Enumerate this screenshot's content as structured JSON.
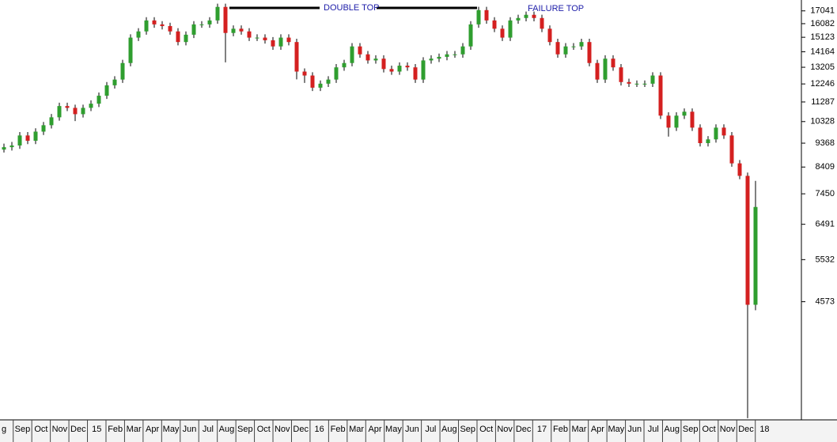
{
  "chart_data": {
    "type": "candlestick",
    "annotations": [
      "DOUBLE TOP",
      "FAILURE TOP"
    ],
    "x_labels": [
      "g",
      "Sep",
      "Oct",
      "Nov",
      "Dec",
      "15",
      "Feb",
      "Mar",
      "Apr",
      "May",
      "Jun",
      "Jul",
      "Aug",
      "Sep",
      "Oct",
      "Nov",
      "Dec",
      "16",
      "Feb",
      "Mar",
      "Apr",
      "May",
      "Jun",
      "Jul",
      "Aug",
      "Sep",
      "Oct",
      "Nov",
      "Dec",
      "17",
      "Feb",
      "Mar",
      "Apr",
      "May",
      "Jun",
      "Jul",
      "Aug",
      "Sep",
      "Oct",
      "Nov",
      "Dec",
      "18"
    ],
    "open": [
      9100,
      9200,
      9270,
      9700,
      9470,
      9870,
      10160,
      10530,
      11080,
      10990,
      10680,
      10990,
      11200,
      11610,
      12170,
      12490,
      13460,
      15100,
      15530,
      16320,
      16030,
      15910,
      15530,
      14800,
      15300,
      16030,
      16030,
      16320,
      17350,
      15420,
      15720,
      15530,
      15100,
      15100,
      14920,
      14510,
      15100,
      14800,
      12950,
      12720,
      12040,
      12260,
      12490,
      13200,
      13460,
      14510,
      14000,
      13620,
      13730,
      13100,
      12950,
      13300,
      13200,
      12490,
      13620,
      13730,
      13840,
      14000,
      14000,
      14510,
      16030,
      17100,
      16320,
      15720,
      15100,
      16320,
      16500,
      16740,
      16500,
      15720,
      14800,
      14000,
      14510,
      14510,
      14800,
      13460,
      12490,
      13730,
      13200,
      12350,
      12260,
      12260,
      12260,
      12720,
      10610,
      10050,
      10610,
      10800,
      10050,
      9370,
      9530,
      10050,
      9700,
      8550,
      8080,
      4510
    ],
    "high": [
      9350,
      9420,
      9850,
      9850,
      10020,
      10310,
      10690,
      11250,
      11250,
      11150,
      11150,
      11370,
      11780,
      12350,
      12680,
      13660,
      15330,
      15760,
      16560,
      16560,
      16270,
      16150,
      15760,
      15530,
      16270,
      16270,
      16560,
      17610,
      17610,
      15960,
      15960,
      15760,
      15330,
      15330,
      15140,
      15330,
      15330,
      15020,
      13140,
      12910,
      12440,
      12680,
      13400,
      13660,
      14730,
      14730,
      14210,
      13940,
      13940,
      13300,
      13500,
      13500,
      13400,
      13820,
      13940,
      14050,
      14210,
      14210,
      14730,
      16270,
      17360,
      17360,
      16560,
      15960,
      16560,
      16750,
      16990,
      16990,
      16750,
      15960,
      15020,
      14730,
      14730,
      15020,
      15020,
      13660,
      13940,
      13940,
      13400,
      12540,
      12440,
      12440,
      12910,
      12910,
      10770,
      10770,
      10960,
      10960,
      10200,
      9670,
      10200,
      10200,
      9850,
      8680,
      8200,
      7900
    ],
    "low": [
      8980,
      9060,
      9130,
      9330,
      9330,
      9720,
      10010,
      10370,
      10830,
      10350,
      10520,
      10830,
      11030,
      11440,
      11990,
      12300,
      13260,
      14870,
      15300,
      15790,
      15670,
      15300,
      14580,
      14580,
      15070,
      15790,
      15790,
      16080,
      13500,
      15190,
      15300,
      14870,
      14870,
      14700,
      14290,
      14290,
      14580,
      12500,
      12300,
      11860,
      11860,
      12080,
      12300,
      13000,
      13260,
      13790,
      13420,
      13420,
      12900,
      12760,
      12760,
      13000,
      12300,
      12300,
      13420,
      13520,
      13630,
      13790,
      13790,
      14290,
      15790,
      16080,
      15480,
      14870,
      14870,
      16080,
      16250,
      16250,
      15480,
      14580,
      13790,
      13790,
      14290,
      14290,
      13260,
      12300,
      12300,
      13000,
      12160,
      12080,
      12080,
      12080,
      12080,
      10450,
      9650,
      9900,
      10450,
      9900,
      9230,
      9230,
      9390,
      9550,
      8420,
      7960,
      2700,
      4400
    ],
    "close": [
      9200,
      9270,
      9700,
      9470,
      9870,
      10160,
      10530,
      11080,
      10990,
      10680,
      10990,
      11200,
      11610,
      12170,
      12490,
      13460,
      15100,
      15530,
      16320,
      16030,
      15910,
      15530,
      14800,
      15300,
      16030,
      16030,
      16320,
      17350,
      15420,
      15720,
      15530,
      15100,
      15100,
      14920,
      14510,
      15100,
      14800,
      12950,
      12720,
      12040,
      12260,
      12490,
      13200,
      13460,
      14510,
      14000,
      13620,
      13730,
      13100,
      12950,
      13300,
      13200,
      12490,
      13620,
      13730,
      13840,
      14000,
      14000,
      14510,
      16030,
      17100,
      16320,
      15720,
      15100,
      16320,
      16500,
      16740,
      16500,
      15720,
      14800,
      14000,
      14510,
      14510,
      14800,
      13460,
      12490,
      13730,
      13200,
      12350,
      12260,
      12260,
      12260,
      12720,
      10610,
      10050,
      10610,
      10800,
      10050,
      9370,
      9530,
      10050,
      9700,
      8550,
      8080,
      4510,
      7020
    ],
    "up_color": "#2f9e2f",
    "down_color": "#d42020",
    "wick_color": "#000000",
    "log_scale": true,
    "ylim": [
      2680,
      17900
    ],
    "yticks": [
      17041,
      16082,
      15123,
      14164,
      13205,
      12246,
      11287,
      10328,
      9368,
      8409,
      7450,
      6491,
      5532,
      4573
    ]
  }
}
